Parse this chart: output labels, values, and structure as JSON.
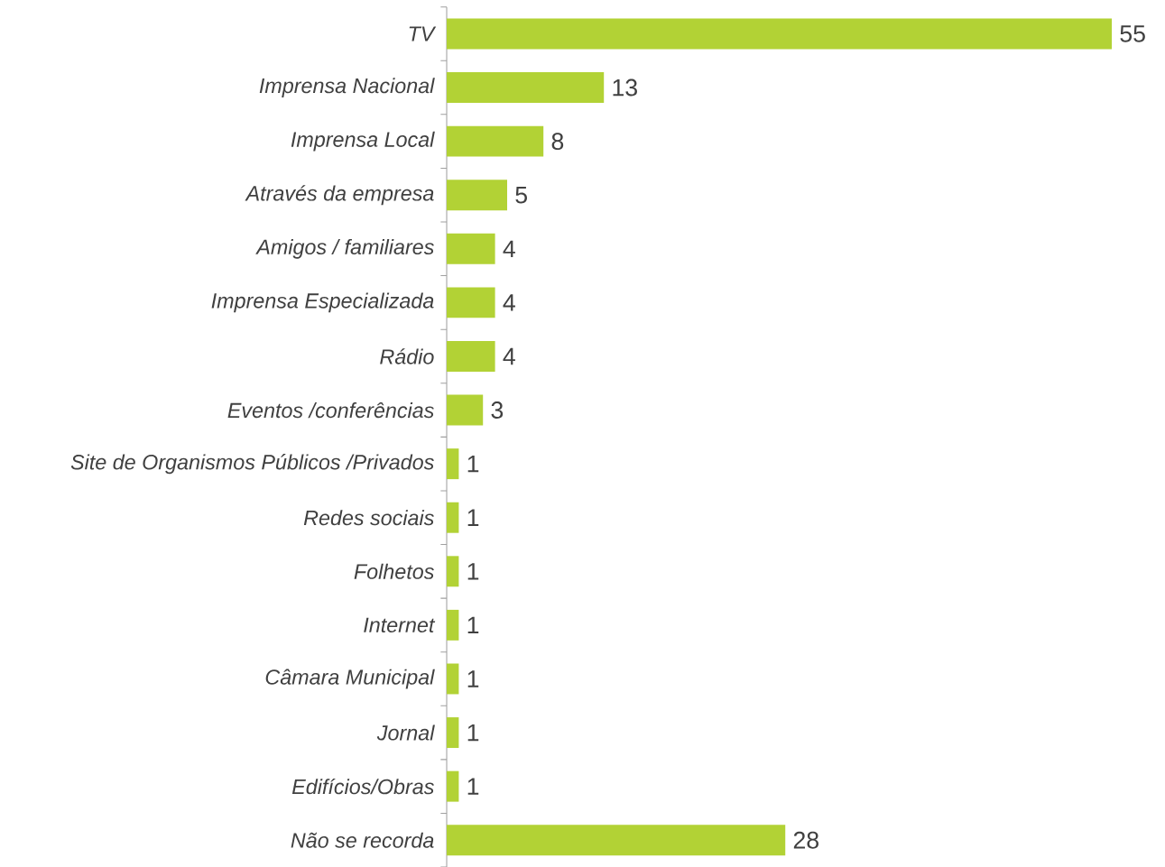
{
  "chart_data": {
    "type": "bar",
    "orientation": "horizontal",
    "categories": [
      "TV",
      "Imprensa Nacional",
      "Imprensa Local",
      "Através da empresa",
      "Amigos / familiares",
      "Imprensa Especializada",
      "Rádio",
      "Eventos /conferências",
      "Site de Organismos Públicos /Privados",
      "Redes sociais",
      "Folhetos",
      "Internet",
      "Câmara Municipal",
      "Jornal",
      "Edifícios/Obras",
      "Não se recorda"
    ],
    "values": [
      55,
      13,
      8,
      5,
      4,
      4,
      4,
      3,
      1,
      1,
      1,
      1,
      1,
      1,
      1,
      28
    ],
    "color": "#b2d235",
    "data_labels": true
  }
}
